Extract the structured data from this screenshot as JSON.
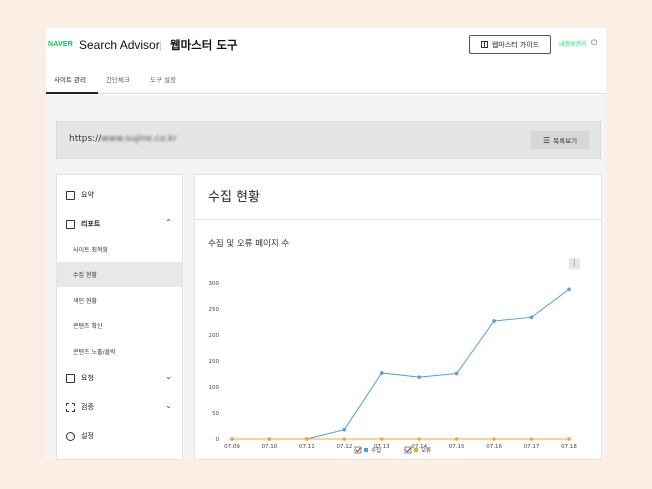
{
  "header": {
    "logo": "NAVER",
    "app_name": "Search Advisor",
    "tool_title": "웹마스터 도구",
    "guide_button": "웹마스터 가이드",
    "user_label": "내정보관리"
  },
  "tabs": [
    {
      "label": "사이트 관리",
      "active": true
    },
    {
      "label": "간단체크",
      "active": false
    },
    {
      "label": "도구 설정",
      "active": false
    }
  ],
  "site": {
    "url_prefix": "https://",
    "url_rest": "www.sujine.co.kr",
    "list_button": "목록보기"
  },
  "sidebar": {
    "summary": "요약",
    "report": "리포트",
    "report_items": [
      "사이트 최적화",
      "수집 현황",
      "색인 현황",
      "콘텐츠 확산",
      "콘텐츠 노출/클릭"
    ],
    "request": "요청",
    "verify": "검증",
    "settings": "설정"
  },
  "main": {
    "title": "수집 현황",
    "chart_title": "수집 및 오류 페이지 수"
  },
  "colors": {
    "accent": "#03c75a",
    "series_collect": "#4aa3df",
    "series_error": "#f0a830"
  },
  "chart_data": {
    "type": "line",
    "title": "수집 및 오류 페이지 수",
    "x": [
      "07.09",
      "07.10",
      "07.11",
      "07.12",
      "07.13",
      "07.14",
      "07.15",
      "07.16",
      "07.17",
      "07.18"
    ],
    "yticks": [
      0,
      50,
      100,
      150,
      200,
      250,
      300
    ],
    "ylim": [
      0,
      300
    ],
    "grid": false,
    "legend": "bottom",
    "series": [
      {
        "name": "수집",
        "values": [
          0,
          0,
          0,
          18,
          127,
          119,
          126,
          227,
          234,
          288
        ]
      },
      {
        "name": "오류",
        "values": [
          0,
          0,
          0,
          0,
          0,
          0,
          0,
          0,
          0,
          0
        ]
      }
    ]
  }
}
